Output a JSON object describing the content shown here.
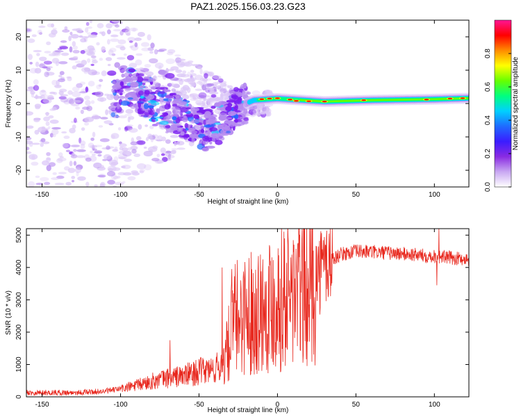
{
  "title": "PAZ1.2025.156.03.23.G23",
  "chart_data": [
    {
      "type": "heatmap",
      "xlabel": "Height of straight line (km)",
      "ylabel": "Frequency (Hz)",
      "xlim": [
        -160,
        122
      ],
      "ylim": [
        -25,
        25
      ],
      "xticks": [
        -150,
        -100,
        -50,
        0,
        50,
        100
      ],
      "yticks": [
        -20,
        -10,
        0,
        10,
        20
      ],
      "colorbar": {
        "label": "Normalized spectral amplitude",
        "range": [
          0,
          1
        ],
        "ticks": [
          "0.0",
          "0.2",
          "0.4",
          "0.6",
          "0.8"
        ],
        "colors": [
          "#ffffff",
          "#c9a8f2",
          "#8a2be2",
          "#3a1cff",
          "#1f6bff",
          "#00d0ff",
          "#00ff7f",
          "#66ff00",
          "#ffff00",
          "#ff8c00",
          "#ff0000",
          "#ff1493"
        ]
      },
      "features": {
        "noise_region_x": [
          -160,
          -25
        ],
        "ridge_track": [
          {
            "x": -100,
            "y": 6
          },
          {
            "x": -80,
            "y": 1
          },
          {
            "x": -60,
            "y": -4
          },
          {
            "x": -45,
            "y": -8
          },
          {
            "x": -35,
            "y": -5
          },
          {
            "x": -25,
            "y": -1
          },
          {
            "x": -15,
            "y": 1
          },
          {
            "x": 0,
            "y": 1.5
          },
          {
            "x": 30,
            "y": 0.6
          },
          {
            "x": 60,
            "y": 1
          },
          {
            "x": 100,
            "y": 1.3
          },
          {
            "x": 122,
            "y": 1.6
          }
        ]
      }
    },
    {
      "type": "line",
      "xlabel": "Height of straight line (km)",
      "ylabel": "SNR (10 * v/v)",
      "xlim": [
        -160,
        122
      ],
      "ylim": [
        0,
        5200
      ],
      "xticks": [
        -150,
        -100,
        -50,
        0,
        50,
        100
      ],
      "yticks": [
        0,
        1000,
        2000,
        3000,
        4000,
        5000
      ],
      "color": "#e8281e",
      "trend": [
        {
          "x": -160,
          "y": 130
        },
        {
          "x": -130,
          "y": 130
        },
        {
          "x": -110,
          "y": 170
        },
        {
          "x": -100,
          "y": 250
        },
        {
          "x": -90,
          "y": 350
        },
        {
          "x": -80,
          "y": 480
        },
        {
          "x": -70,
          "y": 580
        },
        {
          "x": -60,
          "y": 650
        },
        {
          "x": -50,
          "y": 780
        },
        {
          "x": -40,
          "y": 850
        },
        {
          "x": -35,
          "y": 1000
        },
        {
          "x": -32,
          "y": 1400
        },
        {
          "x": -30,
          "y": 1900
        },
        {
          "x": -28,
          "y": 2300
        },
        {
          "x": -25,
          "y": 2500
        },
        {
          "x": -20,
          "y": 2600
        },
        {
          "x": -15,
          "y": 2650
        },
        {
          "x": -10,
          "y": 2750
        },
        {
          "x": -5,
          "y": 2900
        },
        {
          "x": 0,
          "y": 3000
        },
        {
          "x": 10,
          "y": 3200
        },
        {
          "x": 20,
          "y": 3500
        },
        {
          "x": 25,
          "y": 3750
        },
        {
          "x": 30,
          "y": 4100
        },
        {
          "x": 40,
          "y": 4400
        },
        {
          "x": 50,
          "y": 4500
        },
        {
          "x": 60,
          "y": 4480
        },
        {
          "x": 70,
          "y": 4450
        },
        {
          "x": 80,
          "y": 4420
        },
        {
          "x": 90,
          "y": 4380
        },
        {
          "x": 100,
          "y": 4350
        },
        {
          "x": 110,
          "y": 4300
        },
        {
          "x": 122,
          "y": 4250
        }
      ],
      "spikes": [
        {
          "x": -68.5,
          "y": 1750
        },
        {
          "x": -35.2,
          "y": 4000
        },
        {
          "x": -29,
          "y": 3950
        },
        {
          "x": 4.5,
          "y": 4900
        },
        {
          "x": 103,
          "y": 5200
        },
        {
          "x": 101.5,
          "y": 3450
        }
      ]
    }
  ]
}
